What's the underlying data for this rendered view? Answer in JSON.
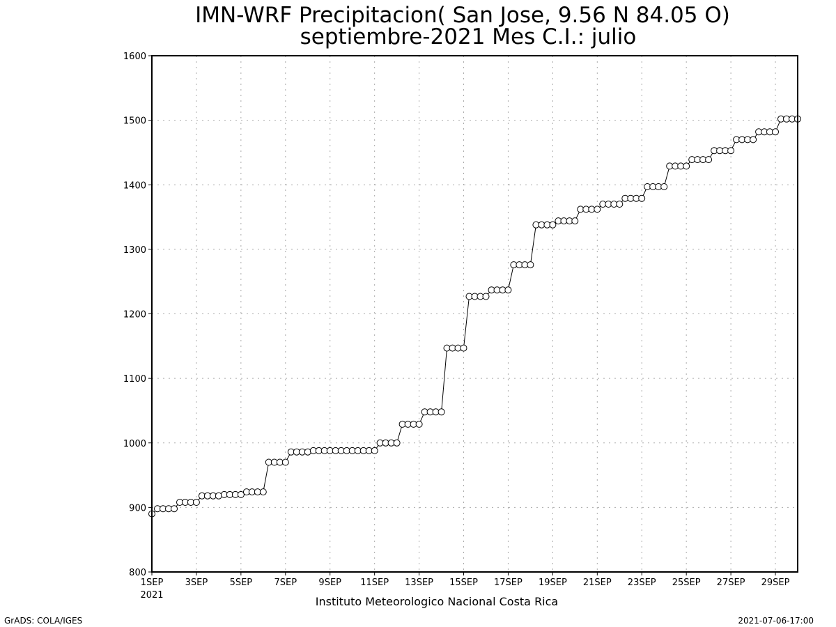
{
  "chart_data": {
    "type": "line",
    "title": "IMN-WRF  Precipitacion( San Jose, 9.56  N 84.05  O)",
    "subtitle": "septiembre-2021 Mes C.I.: julio",
    "xlabel": "Instituto Meteorologico Nacional Costa Rica",
    "ylabel": "",
    "ylim": [
      800,
      1600
    ],
    "yticks": [
      800,
      900,
      1000,
      1100,
      1200,
      1300,
      1400,
      1500,
      1600
    ],
    "xlim": [
      1,
      30
    ],
    "xtick_days": [
      1,
      3,
      5,
      7,
      9,
      11,
      13,
      15,
      17,
      19,
      21,
      23,
      25,
      27,
      29
    ],
    "xticks": [
      "1SEP",
      "3SEP",
      "5SEP",
      "7SEP",
      "9SEP",
      "11SEP",
      "13SEP",
      "15SEP",
      "17SEP",
      "19SEP",
      "21SEP",
      "23SEP",
      "25SEP",
      "27SEP",
      "29SEP"
    ],
    "x_year_label": "2021",
    "grid": true,
    "marker": "open-circle",
    "x_step_days": 0.25,
    "values": [
      890,
      898,
      898,
      898,
      898,
      908,
      908,
      908,
      908,
      918,
      918,
      918,
      918,
      920,
      920,
      920,
      920,
      924,
      924,
      924,
      924,
      970,
      970,
      970,
      970,
      986,
      986,
      986,
      986,
      988,
      988,
      988,
      988,
      988,
      988,
      988,
      988,
      988,
      988,
      988,
      988,
      1000,
      1000,
      1000,
      1000,
      1029,
      1029,
      1029,
      1029,
      1048,
      1048,
      1048,
      1048,
      1147,
      1147,
      1147,
      1147,
      1227,
      1227,
      1227,
      1227,
      1237,
      1237,
      1237,
      1237,
      1276,
      1276,
      1276,
      1276,
      1338,
      1338,
      1338,
      1338,
      1344,
      1344,
      1344,
      1344,
      1362,
      1362,
      1362,
      1362,
      1370,
      1370,
      1370,
      1370,
      1379,
      1379,
      1379,
      1379,
      1397,
      1397,
      1397,
      1397,
      1429,
      1429,
      1429,
      1429,
      1439,
      1439,
      1439,
      1439,
      1453,
      1453,
      1453,
      1453,
      1470,
      1470,
      1470,
      1470,
      1482,
      1482,
      1482,
      1482,
      1502,
      1502,
      1502,
      1502
    ]
  },
  "footer": {
    "left": "GrADS: COLA/IGES",
    "right": "2021-07-06-17:00"
  }
}
